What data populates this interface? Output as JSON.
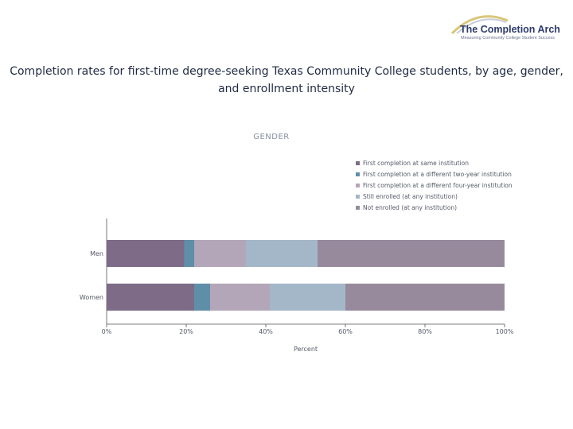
{
  "logo": {
    "title": "The Completion Arch",
    "tagline": "Measuring Community College Student Success"
  },
  "page_title": "Completion rates for first-time degree-seeking Texas Community College students, by age, gender, and enrollment intensity",
  "chart_data": {
    "type": "bar",
    "orientation": "horizontal",
    "stacked": true,
    "title": "GENDER",
    "xlabel": "Percent",
    "ylabel": "",
    "xlim": [
      0,
      100
    ],
    "x_ticks": [
      "0%",
      "20%",
      "40%",
      "60%",
      "80%",
      "100%"
    ],
    "x_tick_values": [
      0,
      20,
      40,
      60,
      80,
      100
    ],
    "categories": [
      "Men",
      "Women"
    ],
    "legend_position": "top-right",
    "grid": false,
    "series": [
      {
        "name": "First completion at same institution",
        "color": "#7d6b87",
        "values": [
          19.5,
          22
        ]
      },
      {
        "name": "First completion at a different two-year institution",
        "color": "#5f8fa8",
        "values": [
          2.5,
          4
        ]
      },
      {
        "name": "First completion at a different four-year institution",
        "color": "#b4a6b9",
        "values": [
          13,
          15
        ]
      },
      {
        "name": "Still enrolled (at any institution)",
        "color": "#a4b7c8",
        "values": [
          18,
          19
        ]
      },
      {
        "name": "Not enrolled (at any institution)",
        "color": "#978a9d",
        "values": [
          47,
          40
        ]
      }
    ]
  }
}
